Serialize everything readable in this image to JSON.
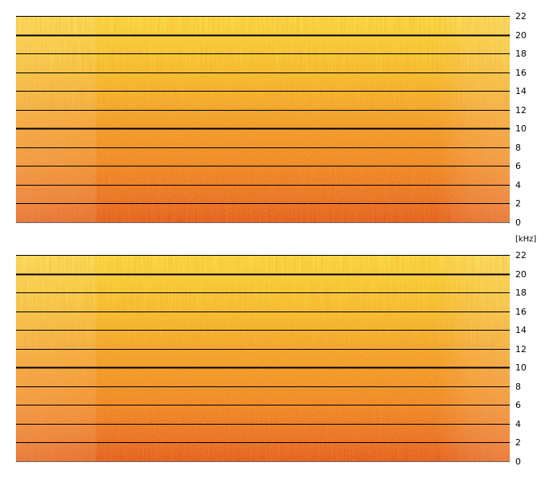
{
  "unit_label": "[kHz]",
  "colors": {
    "low": "#d83a08",
    "mid": "#f28a12",
    "high": "#f7cf22",
    "top": "#fbe63a",
    "gridline": "#000000",
    "background": "#ffffff"
  },
  "chart_data": [
    {
      "type": "heatmap",
      "subtype": "spectrogram",
      "channel_index": 1,
      "title": "",
      "xlabel": "",
      "ylabel": "[kHz]",
      "ylim": [
        0,
        22
      ],
      "yticks": [
        0,
        2,
        4,
        6,
        8,
        10,
        12,
        14,
        16,
        18,
        20,
        22
      ],
      "ytick_labels": [
        "0",
        "2",
        "4",
        "6",
        "8",
        "10",
        "12",
        "14",
        "16",
        "18",
        "20",
        "22"
      ],
      "emphasized_gridlines": [
        10,
        20
      ],
      "grid": true,
      "colormap": [
        "#d83a08",
        "#f28a12",
        "#f7cf22",
        "#fbe63a"
      ]
    },
    {
      "type": "heatmap",
      "subtype": "spectrogram",
      "channel_index": 2,
      "title": "",
      "xlabel": "",
      "ylabel": "[kHz]",
      "ylim": [
        0,
        22
      ],
      "yticks": [
        0,
        2,
        4,
        6,
        8,
        10,
        12,
        14,
        16,
        18,
        20,
        22
      ],
      "ytick_labels": [
        "0",
        "2",
        "4",
        "6",
        "8",
        "10",
        "12",
        "14",
        "16",
        "18",
        "20",
        "22"
      ],
      "emphasized_gridlines": [
        10,
        20
      ],
      "grid": true,
      "colormap": [
        "#d83a08",
        "#f28a12",
        "#f7cf22",
        "#fbe63a"
      ]
    }
  ]
}
